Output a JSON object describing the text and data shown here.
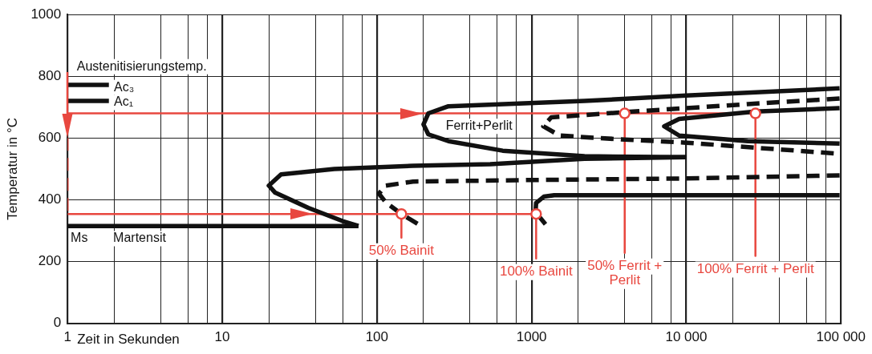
{
  "chart_data": {
    "type": "line",
    "xlabel": "Zeit in Sekunden",
    "ylabel": "Temperatur in °C",
    "log": "x",
    "grid": true,
    "legend": false,
    "xlim": [
      1,
      100000
    ],
    "ylim": [
      0,
      1000
    ],
    "xticks": [
      1,
      {
        "value": 2,
        "label": null
      },
      {
        "value": 4,
        "label": null
      },
      {
        "value": 6,
        "label": null
      },
      {
        "value": 8,
        "label": null
      },
      10,
      {
        "value": 20,
        "label": null
      },
      {
        "value": 40,
        "label": null
      },
      {
        "value": 60,
        "label": null
      },
      {
        "value": 80,
        "label": null
      },
      100,
      {
        "value": 200,
        "label": null
      },
      {
        "value": 400,
        "label": null
      },
      {
        "value": 600,
        "label": null
      },
      {
        "value": 800,
        "label": null
      },
      1000,
      {
        "value": 2000,
        "label": null
      },
      {
        "value": 4000,
        "label": null
      },
      {
        "value": 6000,
        "label": null
      },
      {
        "value": 8000,
        "label": null
      },
      {
        "value": 10000,
        "label": "10 000"
      },
      {
        "value": 20000,
        "label": null
      },
      {
        "value": 40000,
        "label": null
      },
      {
        "value": 60000,
        "label": null
      },
      {
        "value": 80000,
        "label": null
      },
      {
        "value": 100000,
        "label": "100 000"
      }
    ],
    "yticks": [
      0,
      200,
      400,
      600,
      800,
      1000
    ],
    "series": [
      {
        "color": "#111111",
        "marker": "none",
        "line_style": "solid",
        "x": [
          98000,
          10000,
          2200,
          290,
          215,
          200,
          215,
          290,
          650,
          2200,
          10000
        ],
        "values": [
          761,
          738,
          720,
          703,
          680,
          644,
          612,
          590,
          559,
          541,
          538
        ]
      },
      {
        "type": "line",
        "color": "#111111",
        "marker": "none",
        "line_style": "solid",
        "x": [
          10000,
          2200,
          540,
          171,
          53,
          24,
          20,
          22,
          36,
          60,
          76
        ],
        "values": [
          538,
          533,
          515,
          510,
          500,
          482,
          446,
          423,
          374,
          331,
          315
        ]
      },
      {
        "type": "line",
        "color": "#111111",
        "marker": "none",
        "line_style": "solid",
        "x": [
          1,
          76
        ],
        "values": [
          315,
          315
        ]
      },
      {
        "type": "line",
        "color": "#111111",
        "marker": "none",
        "line_style": "dashed",
        "x": [
          98000,
          10000,
          1000,
          171,
          114,
          103,
          114,
          144,
          196
        ],
        "values": [
          479,
          469,
          464,
          459,
          446,
          420,
          392,
          354,
          313
        ]
      },
      {
        "type": "line",
        "color": "#111111",
        "marker": "none",
        "line_style": "solid",
        "x": [
          98000,
          10000,
          1400,
          1200,
          1070,
          1060,
          1230
        ],
        "values": [
          415,
          415,
          415,
          410,
          390,
          360,
          321
        ]
      },
      {
        "type": "line",
        "color": "#111111",
        "marker": "none",
        "line_style": "dashed",
        "x": [
          98000,
          25000,
          4000,
          1340,
          1190,
          1520,
          4000,
          10000,
          98000
        ],
        "values": [
          728,
          710,
          684,
          667,
          638,
          608,
          595,
          585,
          549
        ]
      },
      {
        "type": "line",
        "color": "#111111",
        "marker": "none",
        "line_style": "solid",
        "x": [
          98000,
          28000,
          9000,
          7200,
          9000,
          25000,
          98000
        ],
        "values": [
          697,
          686,
          662,
          638,
          608,
          590,
          582
        ]
      },
      {
        "type": "line",
        "color": "#111111",
        "marker": "none",
        "line_style": "solid",
        "x": [
          1,
          1.85
        ],
        "values": [
          772,
          772
        ]
      },
      {
        "type": "line",
        "color": "#111111",
        "marker": "none",
        "line_style": "solid",
        "x": [
          1,
          1.85
        ],
        "values": [
          720,
          720
        ]
      },
      {
        "type": "line",
        "color": "#e8473f",
        "marker": "none",
        "line_style": "dashed",
        "x": [
          1,
          1
        ],
        "values": [
          600,
          354
        ]
      },
      {
        "type": "line",
        "color": "#e8473f",
        "marker": "none",
        "line_style": "solid",
        "x": [
          1,
          28000
        ],
        "values": [
          680,
          680
        ]
      },
      {
        "type": "line",
        "color": "#e8473f",
        "marker": "none",
        "line_style": "solid",
        "x": [
          1,
          1070
        ],
        "values": [
          354,
          354
        ]
      },
      {
        "type": "line",
        "color": "#e8473f",
        "marker": "none",
        "line_style": "solid",
        "x": [
          144,
          144
        ],
        "values": [
          354,
          277
        ]
      },
      {
        "type": "line",
        "color": "#e8473f",
        "marker": "none",
        "line_style": "solid",
        "x": [
          1070,
          1070
        ],
        "values": [
          354,
          210
        ]
      },
      {
        "type": "line",
        "color": "#e8473f",
        "marker": "none",
        "line_style": "solid",
        "x": [
          4000,
          4000
        ],
        "values": [
          680,
          228
        ]
      },
      {
        "type": "line",
        "color": "#e8473f",
        "marker": "none",
        "line_style": "solid",
        "x": [
          28000,
          28000
        ],
        "values": [
          680,
          218
        ]
      },
      {
        "type": "scatter",
        "color": "#e8473f",
        "marker": "circle",
        "x": [
          144,
          1070,
          4000,
          28000
        ],
        "values": [
          354,
          354,
          680,
          680
        ]
      }
    ],
    "annotations": [
      "Austenitisierungstemp.",
      "Ac₃",
      "Ac₁",
      "Ms",
      "Martensit",
      "Ferrit+Perlit",
      {
        "text": "50% Bainit",
        "x": 144,
        "y": 277
      },
      {
        "text": "100% Bainit",
        "x": 1070,
        "y": 210
      },
      {
        "text": "50% Ferrit +\nPerlit",
        "x": 4000,
        "y": 228
      },
      {
        "text": "100% Ferrit + Perlit",
        "x": 28000,
        "y": 218
      }
    ]
  }
}
